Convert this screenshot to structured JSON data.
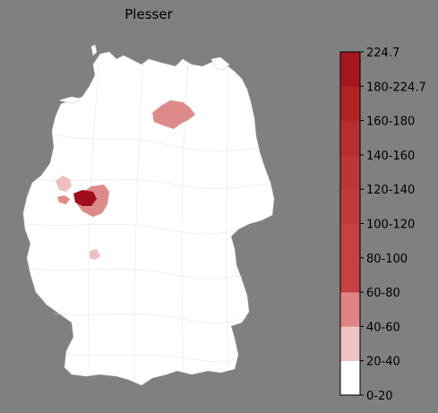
{
  "title": "Plesser",
  "colorbar": {
    "labels": [
      "0-20",
      "20-40",
      "40-60",
      "60-80",
      "80-100",
      "100-120",
      "120-140",
      "140-160",
      "160-180",
      "180-224.7",
      "224.7"
    ],
    "bands": [
      "#ffffff",
      "#f0c4c4",
      "#de8484",
      "#c84040",
      "#c84040",
      "#c23b3b",
      "#be3535",
      "#b82e2e",
      "#b02424",
      "#a8151f"
    ]
  },
  "colors": {
    "background": "#808080",
    "land": "#ffffff",
    "border": "#cccccc",
    "max": "#a00d1d"
  }
}
